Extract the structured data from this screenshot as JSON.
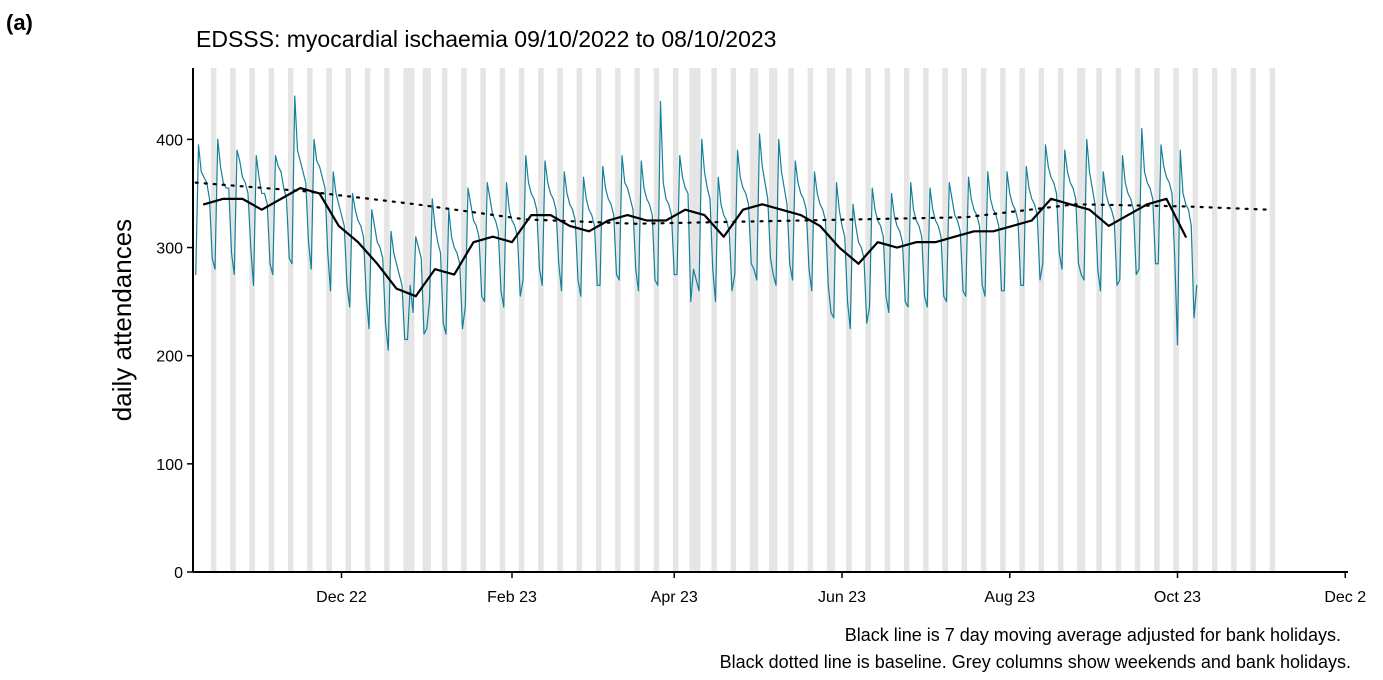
{
  "chart_data": {
    "type": "line",
    "panel": "(a)",
    "title": "EDSSS: myocardial ischaemia 09/10/2022 to 08/10/2023",
    "y_label": "daily attendances",
    "notes": [
      "Black line is 7 day moving average adjusted for bank holidays.",
      "Black dotted line is baseline. Grey columns show weekends and bank holidays."
    ],
    "xlim": [
      -1,
      419
    ],
    "xticks": [
      {
        "value": 53,
        "label": "Dec 22"
      },
      {
        "value": 115,
        "label": "Feb 23"
      },
      {
        "value": 174,
        "label": "Apr 23"
      },
      {
        "value": 235,
        "label": "Jun 23"
      },
      {
        "value": 296,
        "label": "Aug 23"
      },
      {
        "value": 357,
        "label": "Oct 23"
      },
      {
        "value": 418,
        "label": "Dec 2"
      }
    ],
    "ylim": [
      0,
      466
    ],
    "yticks": [
      0,
      100,
      200,
      300,
      400
    ],
    "shade_color": "#e5e5e5",
    "weekends": [
      6,
      13,
      20,
      27,
      34,
      41,
      48,
      55,
      62,
      69,
      76,
      83,
      90,
      97,
      104,
      111,
      118,
      125,
      132,
      139,
      146,
      153,
      160,
      167,
      174,
      181,
      188,
      195,
      202,
      209,
      216,
      223,
      230,
      237,
      244,
      251,
      258,
      265,
      272,
      279,
      286,
      293,
      300,
      307,
      314,
      321,
      328,
      335,
      342,
      349,
      356,
      363,
      370,
      377,
      384,
      391
    ],
    "bank_holidays": [
      78,
      79,
      85,
      180,
      183,
      204,
      211,
      232,
      323
    ],
    "series": [
      {
        "color": "#15809a",
        "width": 1.2,
        "dash": null,
        "x": [
          0,
          1,
          2,
          3,
          4,
          5,
          6,
          7,
          8,
          9,
          10,
          11,
          12,
          13,
          14,
          15,
          16,
          17,
          18,
          19,
          20,
          21,
          22,
          23,
          24,
          25,
          26,
          27,
          28,
          29,
          30,
          31,
          32,
          33,
          34,
          35,
          36,
          37,
          38,
          39,
          40,
          41,
          42,
          43,
          44,
          45,
          46,
          47,
          48,
          49,
          50,
          51,
          52,
          53,
          54,
          55,
          56,
          57,
          58,
          59,
          60,
          61,
          62,
          63,
          64,
          65,
          66,
          67,
          68,
          69,
          70,
          71,
          72,
          73,
          74,
          75,
          76,
          77,
          78,
          79,
          80,
          81,
          82,
          83,
          84,
          85,
          86,
          87,
          88,
          89,
          90,
          91,
          92,
          93,
          94,
          95,
          96,
          97,
          98,
          99,
          100,
          101,
          102,
          103,
          104,
          105,
          106,
          107,
          108,
          109,
          110,
          111,
          112,
          113,
          114,
          115,
          116,
          117,
          118,
          119,
          120,
          121,
          122,
          123,
          124,
          125,
          126,
          127,
          128,
          129,
          130,
          131,
          132,
          133,
          134,
          135,
          136,
          137,
          138,
          139,
          140,
          141,
          142,
          143,
          144,
          145,
          146,
          147,
          148,
          149,
          150,
          151,
          152,
          153,
          154,
          155,
          156,
          157,
          158,
          159,
          160,
          161,
          162,
          163,
          164,
          165,
          166,
          167,
          168,
          169,
          170,
          171,
          172,
          173,
          174,
          175,
          176,
          177,
          178,
          179,
          180,
          181,
          182,
          183,
          184,
          185,
          186,
          187,
          188,
          189,
          190,
          191,
          192,
          193,
          194,
          195,
          196,
          197,
          198,
          199,
          200,
          201,
          202,
          203,
          204,
          205,
          206,
          207,
          208,
          209,
          210,
          211,
          212,
          213,
          214,
          215,
          216,
          217,
          218,
          219,
          220,
          221,
          222,
          223,
          224,
          225,
          226,
          227,
          228,
          229,
          230,
          231,
          232,
          233,
          234,
          235,
          236,
          237,
          238,
          239,
          240,
          241,
          242,
          243,
          244,
          245,
          246,
          247,
          248,
          249,
          250,
          251,
          252,
          253,
          254,
          255,
          256,
          257,
          258,
          259,
          260,
          261,
          262,
          263,
          264,
          265,
          266,
          267,
          268,
          269,
          270,
          271,
          272,
          273,
          274,
          275,
          276,
          277,
          278,
          279,
          280,
          281,
          282,
          283,
          284,
          285,
          286,
          287,
          288,
          289,
          290,
          291,
          292,
          293,
          294,
          295,
          296,
          297,
          298,
          299,
          300,
          301,
          302,
          303,
          304,
          305,
          306,
          307,
          308,
          309,
          310,
          311,
          312,
          313,
          314,
          315,
          316,
          317,
          318,
          319,
          320,
          321,
          322,
          323,
          324,
          325,
          326,
          327,
          328,
          329,
          330,
          331,
          332,
          333,
          334,
          335,
          336,
          337,
          338,
          339,
          340,
          341,
          342,
          343,
          344,
          345,
          346,
          347,
          348,
          349,
          350,
          351,
          352,
          353,
          354,
          355,
          356,
          357,
          358,
          359,
          360,
          361,
          362,
          363,
          364
        ],
        "values": [
          275,
          395,
          370,
          365,
          360,
          345,
          290,
          280,
          400,
          375,
          360,
          355,
          355,
          295,
          275,
          390,
          380,
          365,
          360,
          350,
          300,
          265,
          385,
          365,
          350,
          350,
          340,
          285,
          275,
          385,
          375,
          370,
          355,
          345,
          290,
          285,
          440,
          390,
          380,
          370,
          360,
          305,
          280,
          400,
          380,
          375,
          365,
          355,
          295,
          260,
          370,
          350,
          340,
          330,
          320,
          265,
          245,
          350,
          335,
          325,
          320,
          310,
          255,
          225,
          335,
          320,
          305,
          300,
          290,
          230,
          205,
          315,
          295,
          285,
          275,
          265,
          215,
          215,
          265,
          240,
          310,
          300,
          290,
          220,
          225,
          250,
          345,
          320,
          305,
          295,
          230,
          220,
          335,
          310,
          300,
          295,
          285,
          225,
          245,
          355,
          340,
          325,
          320,
          310,
          255,
          250,
          360,
          345,
          330,
          325,
          315,
          260,
          245,
          360,
          335,
          325,
          320,
          310,
          255,
          270,
          385,
          360,
          350,
          345,
          335,
          280,
          265,
          380,
          360,
          350,
          345,
          335,
          285,
          260,
          370,
          350,
          340,
          335,
          325,
          270,
          255,
          365,
          345,
          335,
          330,
          320,
          265,
          265,
          375,
          355,
          345,
          340,
          330,
          275,
          270,
          385,
          360,
          355,
          345,
          335,
          280,
          260,
          380,
          355,
          345,
          340,
          330,
          270,
          265,
          435,
          360,
          345,
          340,
          330,
          275,
          275,
          385,
          365,
          355,
          350,
          250,
          280,
          270,
          260,
          400,
          370,
          355,
          345,
          280,
          250,
          365,
          340,
          330,
          325,
          315,
          260,
          275,
          390,
          365,
          355,
          350,
          340,
          285,
          280,
          270,
          405,
          375,
          360,
          345,
          290,
          275,
          265,
          400,
          370,
          355,
          340,
          285,
          270,
          380,
          360,
          350,
          345,
          335,
          280,
          260,
          370,
          350,
          340,
          335,
          325,
          265,
          240,
          235,
          360,
          335,
          320,
          310,
          250,
          225,
          340,
          320,
          305,
          300,
          290,
          230,
          245,
          355,
          335,
          325,
          320,
          310,
          255,
          240,
          350,
          330,
          320,
          315,
          305,
          250,
          245,
          360,
          335,
          325,
          320,
          310,
          255,
          245,
          355,
          335,
          325,
          320,
          310,
          255,
          250,
          360,
          345,
          330,
          325,
          315,
          260,
          255,
          365,
          345,
          335,
          330,
          320,
          265,
          255,
          370,
          345,
          335,
          330,
          320,
          260,
          260,
          370,
          350,
          340,
          335,
          325,
          265,
          265,
          375,
          355,
          345,
          340,
          330,
          270,
          285,
          395,
          375,
          365,
          360,
          350,
          295,
          280,
          390,
          370,
          360,
          355,
          345,
          285,
          275,
          270,
          400,
          370,
          355,
          340,
          280,
          260,
          370,
          350,
          340,
          335,
          325,
          265,
          270,
          385,
          360,
          350,
          345,
          335,
          275,
          280,
          410,
          370,
          360,
          355,
          345,
          285,
          285,
          395,
          375,
          365,
          360,
          350,
          290,
          210,
          390,
          350,
          340,
          335,
          320,
          235,
          265
        ]
      },
      {
        "color": "#000000",
        "width": 2.2,
        "dash": null,
        "x": [
          3,
          10,
          17,
          24,
          31,
          38,
          45,
          52,
          59,
          66,
          73,
          80,
          87,
          94,
          101,
          108,
          115,
          122,
          129,
          136,
          143,
          150,
          157,
          164,
          171,
          178,
          185,
          192,
          199,
          206,
          213,
          220,
          227,
          234,
          241,
          248,
          255,
          262,
          269,
          276,
          283,
          290,
          297,
          304,
          311,
          318,
          325,
          332,
          339,
          346,
          353,
          360
        ],
        "values": [
          340,
          345,
          345,
          335,
          345,
          355,
          350,
          320,
          305,
          285,
          262,
          255,
          280,
          275,
          305,
          310,
          305,
          330,
          330,
          320,
          315,
          325,
          330,
          325,
          325,
          335,
          330,
          310,
          335,
          340,
          335,
          330,
          320,
          300,
          285,
          305,
          300,
          305,
          305,
          310,
          315,
          315,
          320,
          325,
          345,
          340,
          335,
          320,
          330,
          340,
          345,
          310
        ]
      },
      {
        "color": "#000000",
        "width": 2.2,
        "dash": "2 7",
        "x": [
          0,
          40,
          80,
          120,
          160,
          200,
          240,
          280,
          320,
          360,
          390
        ],
        "values": [
          360,
          352,
          340,
          326,
          322,
          324,
          326,
          328,
          340,
          338,
          335
        ]
      }
    ]
  }
}
